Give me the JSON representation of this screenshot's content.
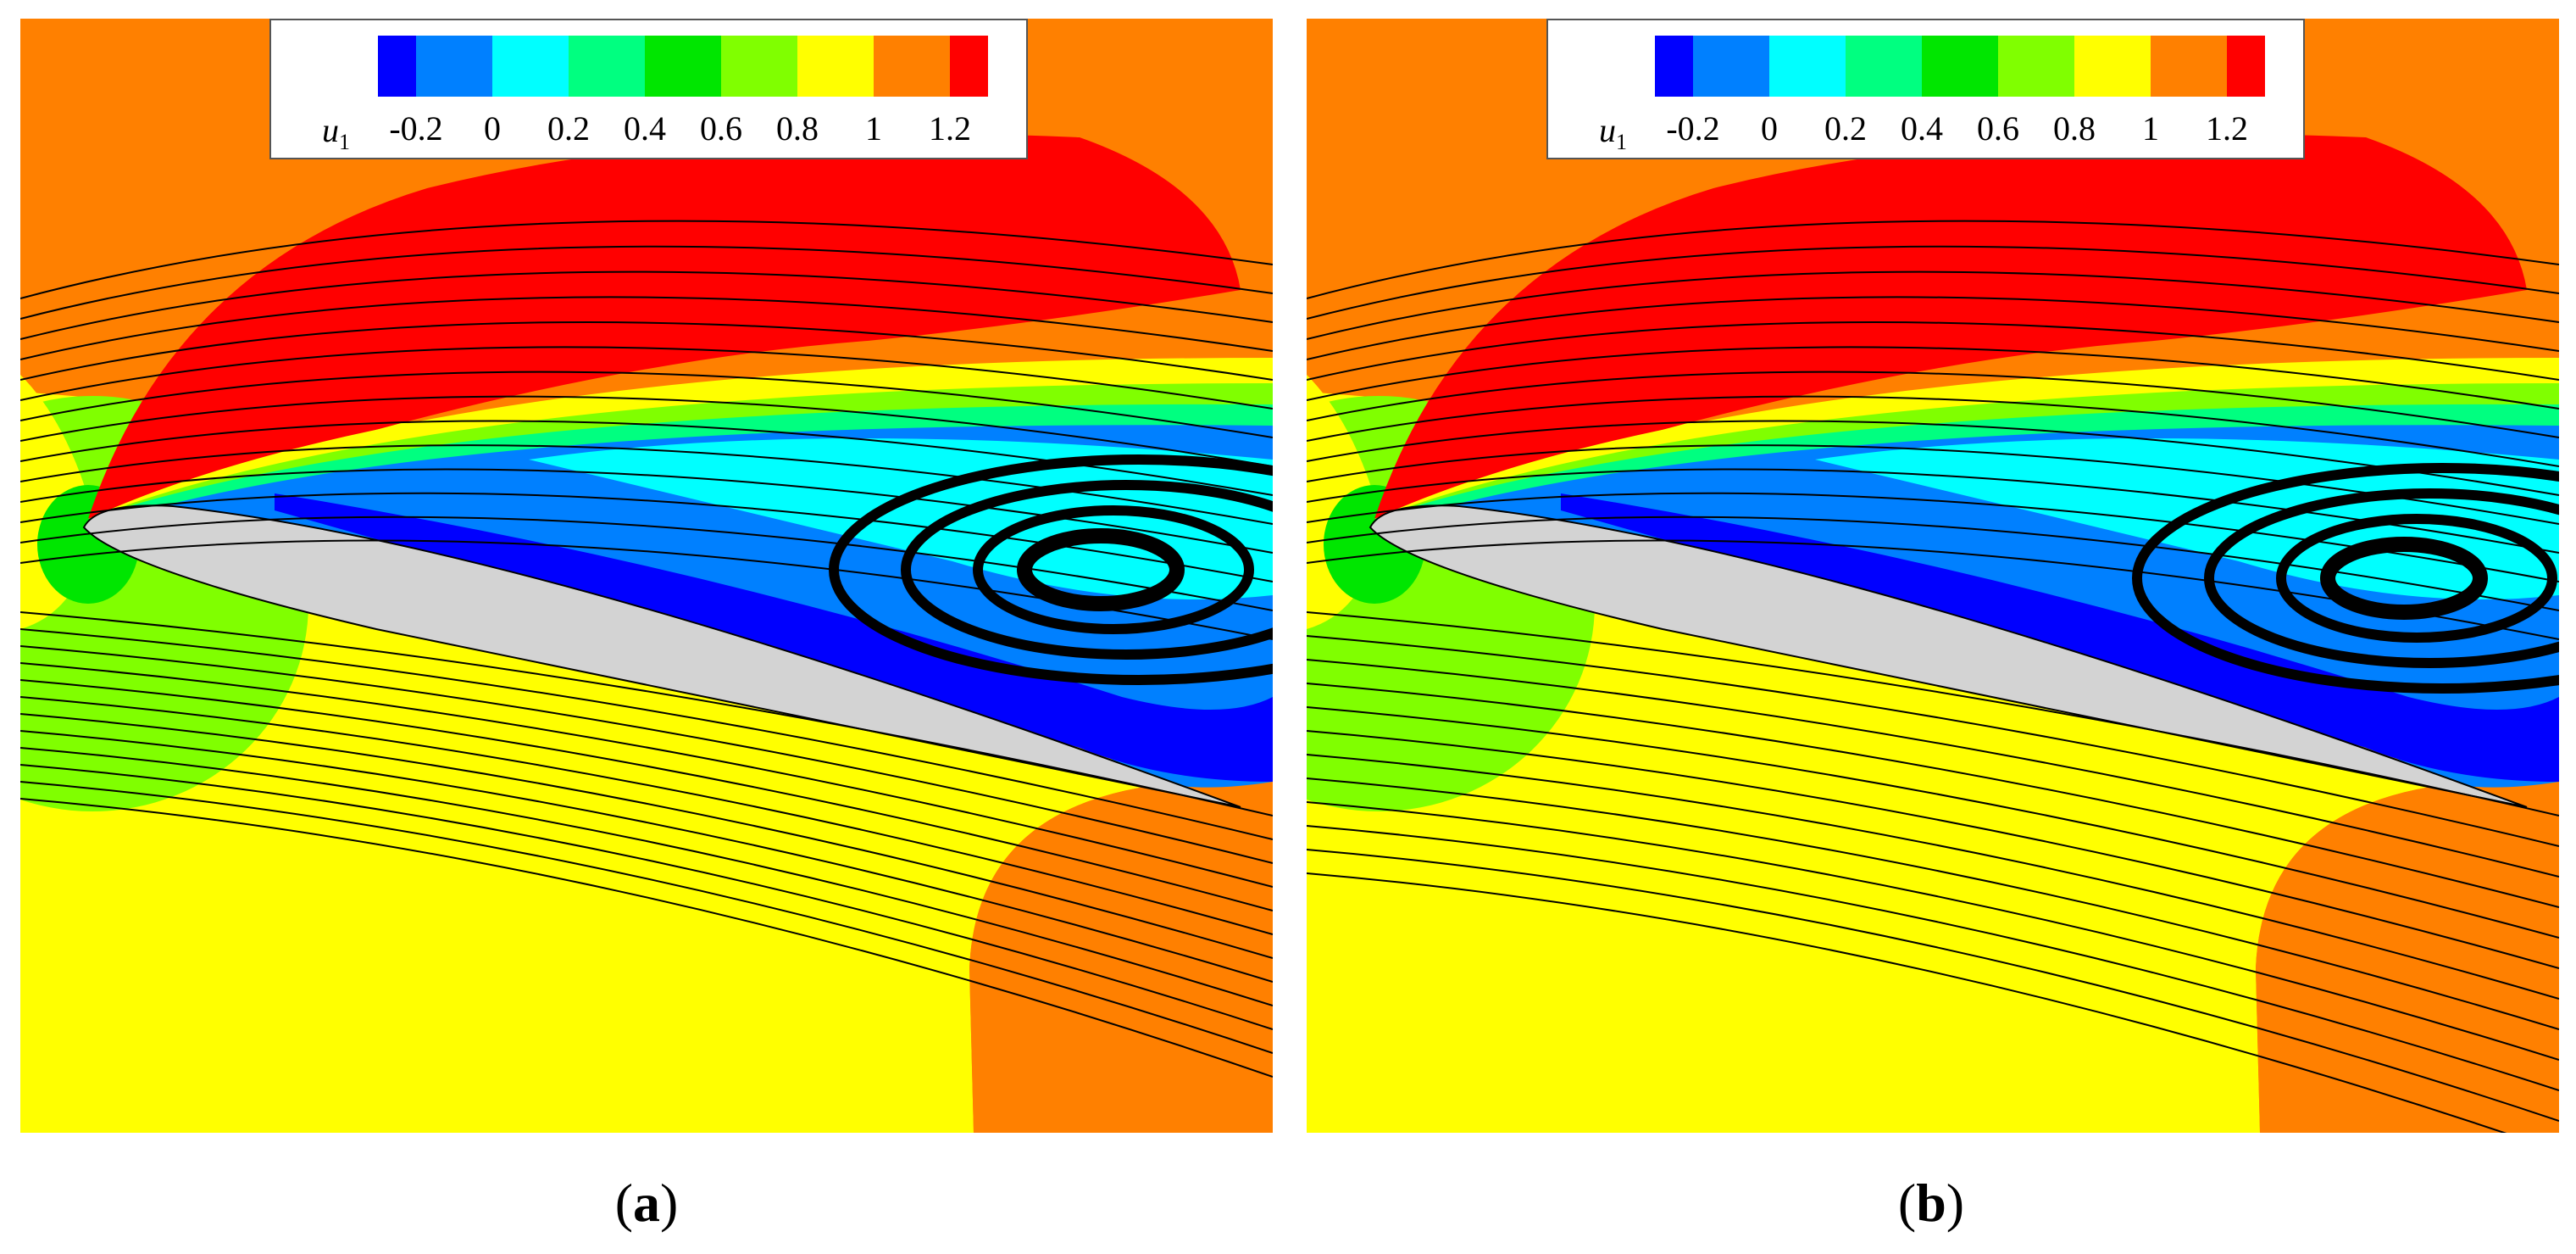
{
  "legend": {
    "variable": "u",
    "subscript": "1",
    "colors": [
      "#0000ff",
      "#0080ff",
      "#00ffff",
      "#00ff80",
      "#00e600",
      "#80ff00",
      "#ffff00",
      "#ff8000",
      "#ff0000"
    ],
    "tick_labels": [
      "-0.2",
      "0",
      "0.2",
      "0.4",
      "0.6",
      "0.8",
      "1",
      "1.2"
    ]
  },
  "panels": [
    {
      "id": "a",
      "caption_open": "(",
      "caption_letter": "a",
      "caption_close": ")"
    },
    {
      "id": "b",
      "caption_open": "(",
      "caption_letter": "b",
      "caption_close": ")"
    }
  ],
  "colors": {
    "background_field": "#ff8000",
    "airfoil": "#d3d3d3",
    "streamline": "#000000"
  }
}
